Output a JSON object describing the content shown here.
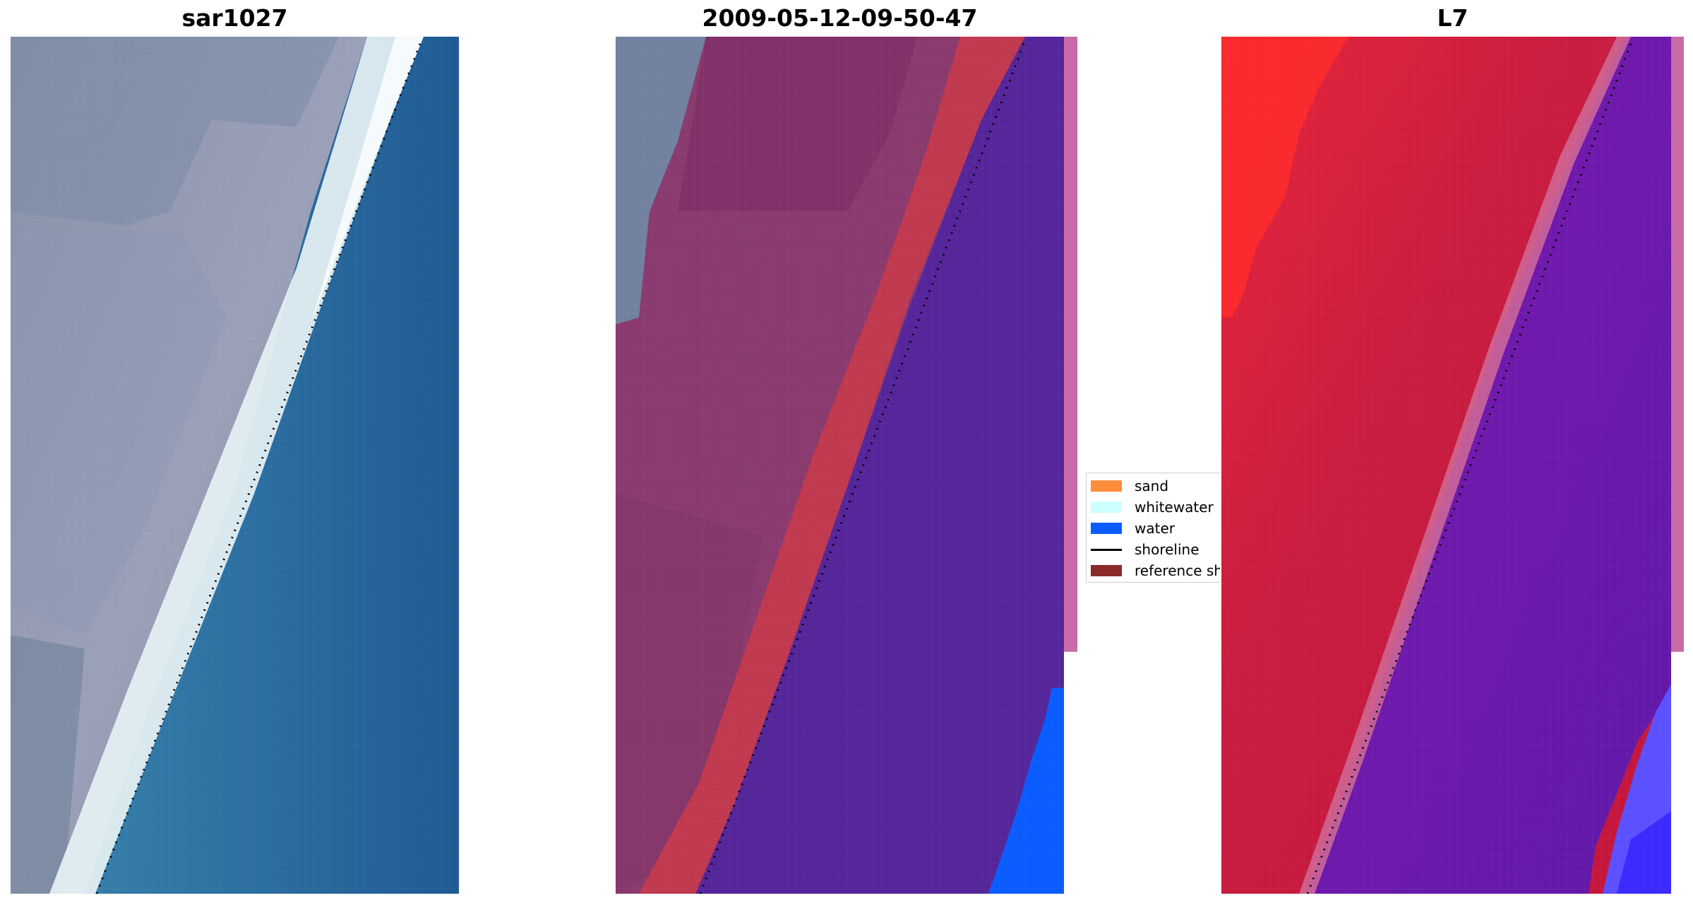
{
  "panels": [
    {
      "title": "sar1027"
    },
    {
      "title": "2009-05-12-09-50-47"
    },
    {
      "title": "L7"
    }
  ],
  "legend": {
    "items": [
      {
        "label": "sand",
        "kind": "patch",
        "color": "#ff8c3a"
      },
      {
        "label": "whitewater",
        "kind": "patch",
        "color": "#ccffff"
      },
      {
        "label": "water",
        "kind": "patch",
        "color": "#0a5cff"
      },
      {
        "label": "shoreline",
        "kind": "line",
        "color": "#000000"
      },
      {
        "label": "reference shoreline",
        "kind": "patch",
        "color": "#8b2a2a"
      }
    ]
  },
  "colors": {
    "land_rgb": "#8a92ab",
    "water_rgb": "#2a6ea0",
    "land_classified": "#8a3a6e",
    "sand_buffer": "#c0394e",
    "water_classified": "#55259a",
    "water_class_blue": "#0a5cff",
    "land_index": "#c41a3c",
    "water_index": "#6a1aaa",
    "edge_strip": "#c86aa6"
  }
}
